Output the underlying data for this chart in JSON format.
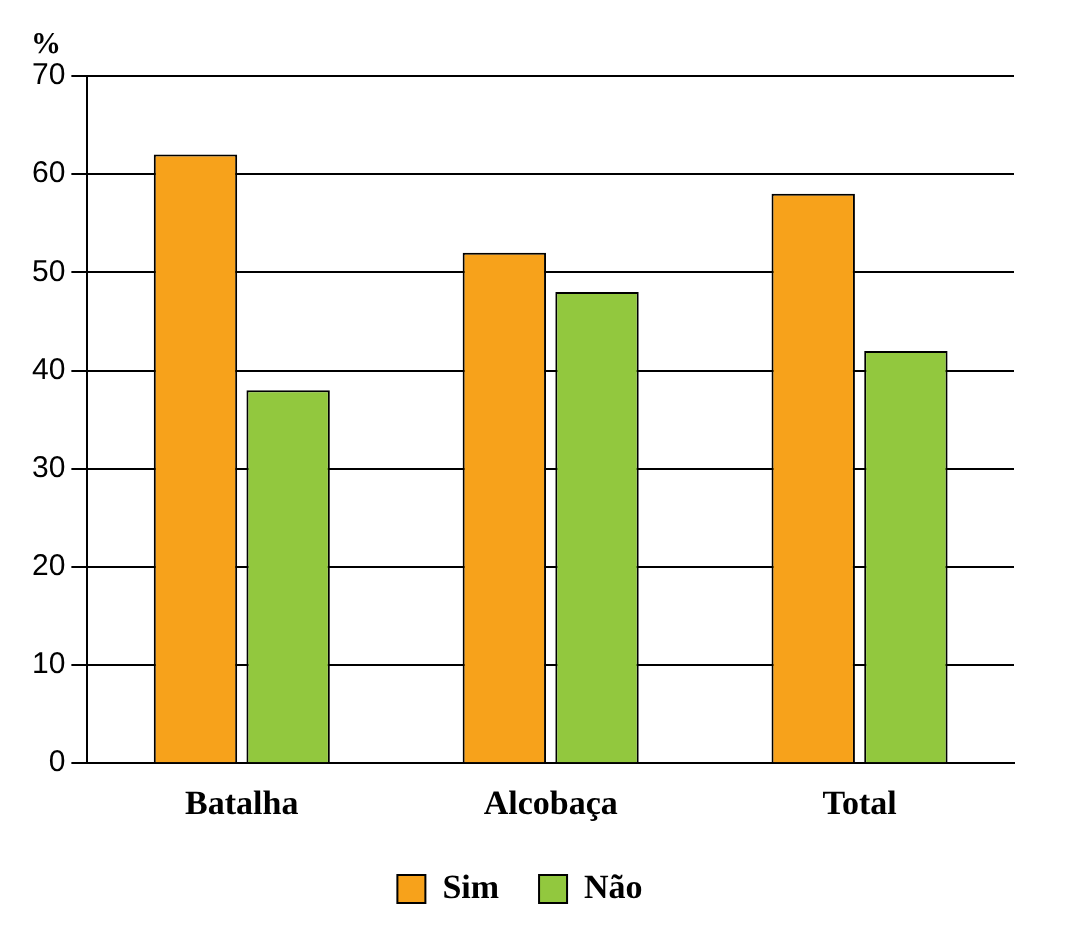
{
  "chart_data": {
    "type": "bar",
    "ylabel": "%",
    "categories": [
      "Batalha",
      "Alcobaça",
      "Total"
    ],
    "series": [
      {
        "name": "Sim",
        "color": "#f7a21b",
        "values": [
          62,
          52,
          58
        ]
      },
      {
        "name": "Não",
        "color": "#92c83e",
        "values": [
          38,
          48,
          42
        ]
      }
    ],
    "ylim": [
      0,
      70
    ],
    "yticks": [
      0,
      10,
      20,
      30,
      40,
      50,
      60,
      70
    ],
    "grid": "y",
    "legend": "bottom"
  }
}
